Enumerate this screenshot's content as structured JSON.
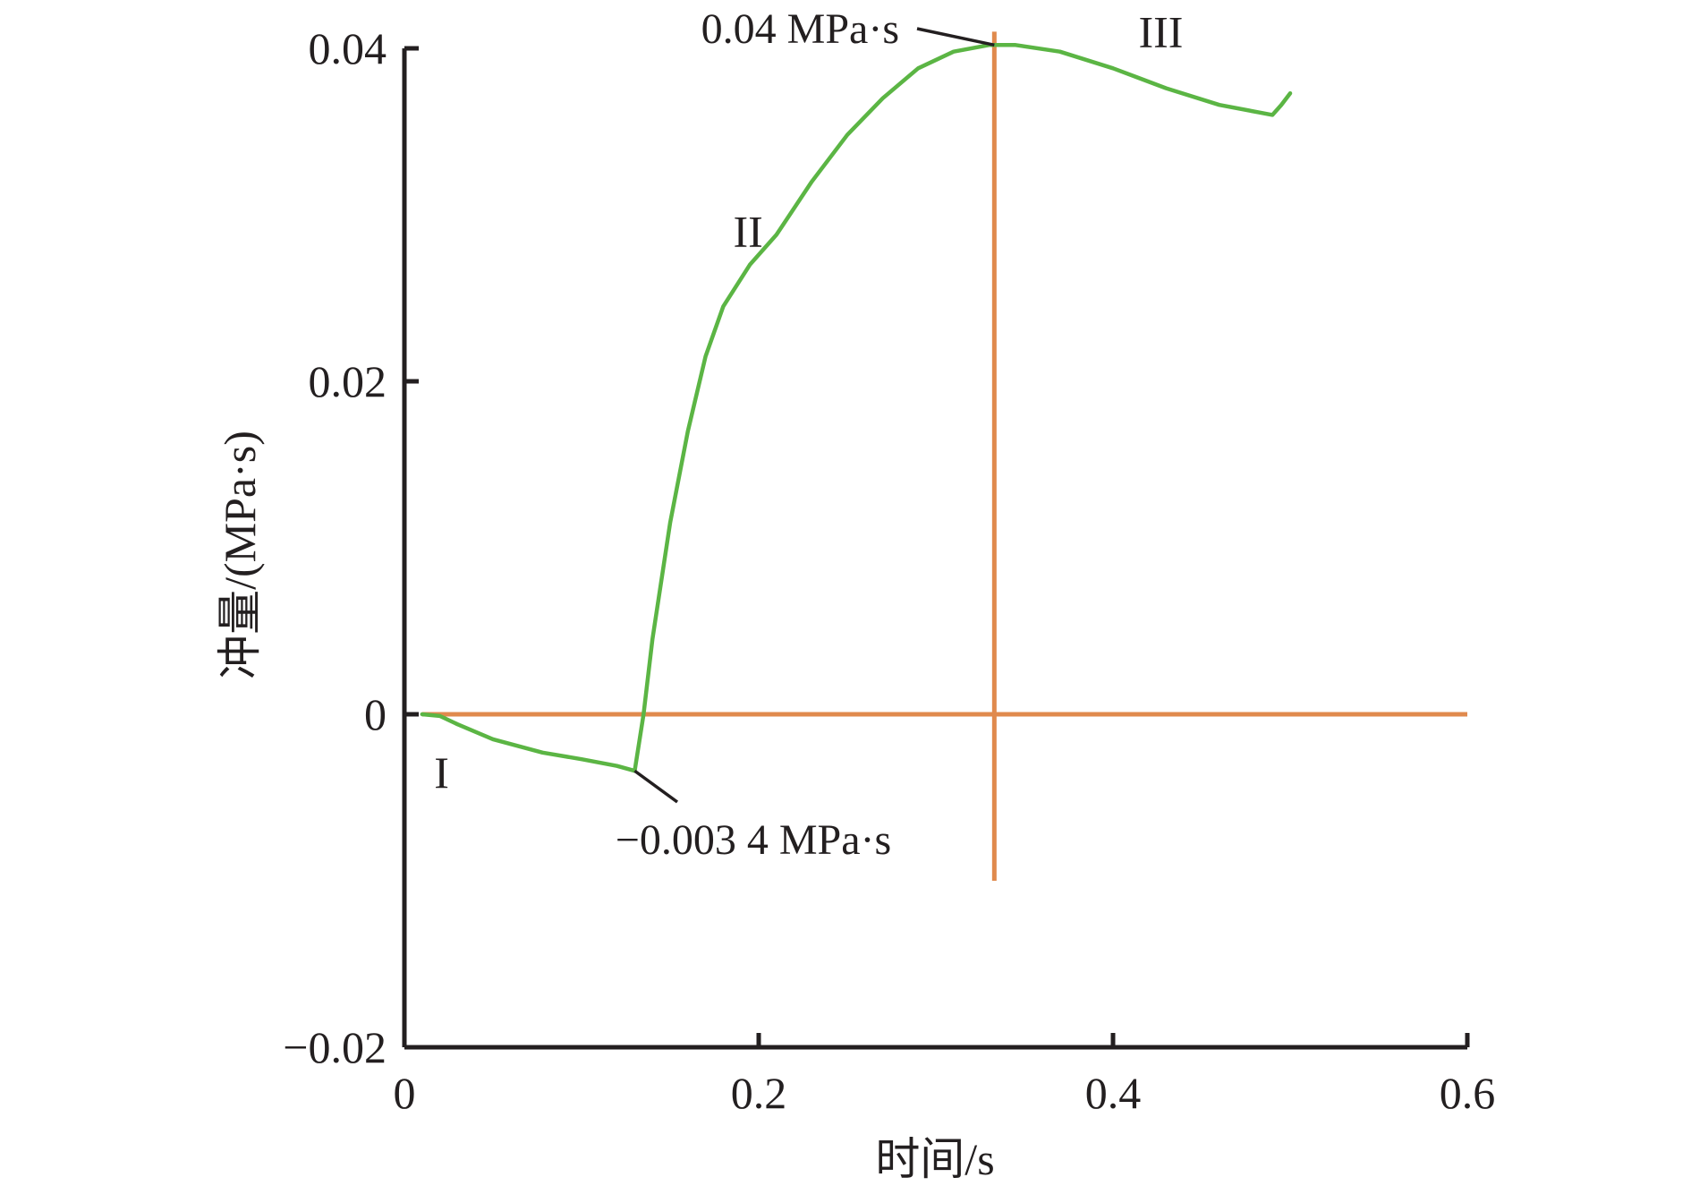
{
  "chart_data": {
    "type": "line",
    "xlabel": "时间/s",
    "ylabel": "冲量/(MPa·s)",
    "xlim": [
      0,
      0.6
    ],
    "ylim": [
      -0.02,
      0.04
    ],
    "x_ticks": [
      0,
      0.2,
      0.4,
      0.6
    ],
    "x_tick_labels": [
      "0",
      "0.2",
      "0.4",
      "0.6"
    ],
    "y_ticks": [
      -0.02,
      0,
      0.02,
      0.04
    ],
    "y_tick_labels": [
      "−0.02",
      "0",
      "0.02",
      "0.04"
    ],
    "grid": false,
    "colors": {
      "series": "#5bb544",
      "reference": "#e08a4d",
      "axis": "#231f20"
    },
    "series": [
      {
        "x": [
          0.01,
          0.02,
          0.03,
          0.05,
          0.078,
          0.1,
          0.12,
          0.13,
          0.135,
          0.14,
          0.15,
          0.16,
          0.17,
          0.18,
          0.195,
          0.21,
          0.23,
          0.25,
          0.27,
          0.29,
          0.31,
          0.33,
          0.345,
          0.37,
          0.4,
          0.43,
          0.46,
          0.49,
          0.495,
          0.5
        ],
        "y": [
          0.0,
          -0.0001,
          -0.0006,
          -0.0015,
          -0.0023,
          -0.0027,
          -0.0031,
          -0.0034,
          0.0,
          0.0045,
          0.0115,
          0.017,
          0.0215,
          0.0245,
          0.027,
          0.0288,
          0.032,
          0.0348,
          0.037,
          0.0388,
          0.0398,
          0.0402,
          0.0402,
          0.0398,
          0.0388,
          0.0376,
          0.0366,
          0.036,
          0.0366,
          0.0373
        ]
      }
    ],
    "reference_lines": [
      {
        "orientation": "horizontal",
        "value": 0,
        "from": 0.01,
        "to": 0.6
      },
      {
        "orientation": "vertical",
        "value": 0.333,
        "from": -0.01,
        "to": 0.041
      }
    ],
    "annotations": [
      {
        "text": "0.04 MPa·s",
        "at": [
          0.333,
          0.0402
        ]
      },
      {
        "text": "−0.003 4 MPa·s",
        "at": [
          0.13,
          -0.0034
        ]
      }
    ],
    "phase_labels": [
      {
        "text": "I",
        "at": [
          0.021,
          -0.0035
        ]
      },
      {
        "text": "II",
        "at": [
          0.194,
          0.029
        ]
      },
      {
        "text": "III",
        "at": [
          0.427,
          0.041
        ]
      }
    ]
  }
}
